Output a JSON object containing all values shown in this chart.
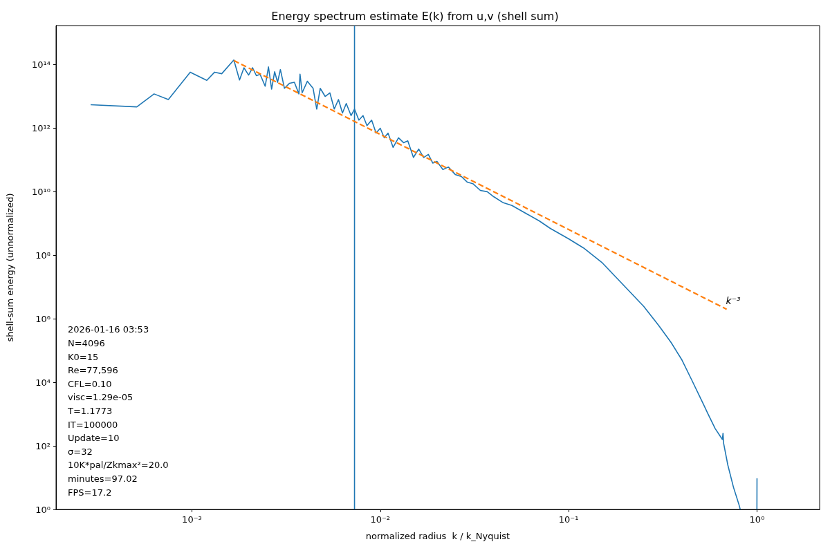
{
  "chart_data": {
    "type": "line",
    "title": "Energy spectrum estimate E(k) from u,v (shell sum)",
    "xlabel": "normalized radius  k / k_Nyquist",
    "ylabel": "shell-sum energy (unnormalized)",
    "log": "xy",
    "grid": false,
    "marker": "none",
    "xlim": [
      0.00019,
      2.15
    ],
    "ylim": [
      1,
      1700000000000000.0
    ],
    "xticks": [
      {
        "value": 0.001,
        "label": "10⁻³"
      },
      {
        "value": 0.01,
        "label": "10⁻²"
      },
      {
        "value": 0.1,
        "label": "10⁻¹"
      },
      {
        "value": 1,
        "label": "10⁰"
      }
    ],
    "yticks": [
      {
        "value": 1,
        "label": "10⁰"
      },
      {
        "value": 100,
        "label": "10²"
      },
      {
        "value": 10000,
        "label": "10⁴"
      },
      {
        "value": 1000000,
        "label": "10⁶"
      },
      {
        "value": 100000000,
        "label": "10⁸"
      },
      {
        "value": 10000000000,
        "label": "10¹⁰"
      },
      {
        "value": 1000000000000,
        "label": "10¹²"
      },
      {
        "value": 100000000000000,
        "label": "10¹⁴"
      }
    ],
    "ref_lines": [
      {
        "axis": "x",
        "value": 0.0073,
        "label": null,
        "color": "#1f77b4"
      }
    ],
    "series": [
      {
        "color": "#1f77b4",
        "line_style": "solid",
        "x": [
          0.00029,
          0.00051,
          0.00063,
          0.00075,
          0.00098,
          0.0012,
          0.00132,
          0.00144,
          0.00167,
          0.00179,
          0.00189,
          0.002,
          0.0021,
          0.0022,
          0.0023,
          0.00245,
          0.00255,
          0.00265,
          0.00275,
          0.00285,
          0.00295,
          0.0031,
          0.0033,
          0.0035,
          0.0037,
          0.00375,
          0.00385,
          0.0041,
          0.0044,
          0.0046,
          0.0048,
          0.0051,
          0.0054,
          0.0057,
          0.006,
          0.0063,
          0.0066,
          0.007,
          0.0073,
          0.0077,
          0.0081,
          0.0085,
          0.009,
          0.0095,
          0.01,
          0.0105,
          0.011,
          0.0117,
          0.0125,
          0.0133,
          0.014,
          0.015,
          0.016,
          0.017,
          0.018,
          0.019,
          0.02,
          0.0215,
          0.023,
          0.025,
          0.027,
          0.029,
          0.031,
          0.034,
          0.037,
          0.04,
          0.045,
          0.05,
          0.06,
          0.07,
          0.08,
          0.1,
          0.12,
          0.15,
          0.2,
          0.25,
          0.3,
          0.35,
          0.4,
          0.45,
          0.5,
          0.55,
          0.6,
          0.655,
          0.66,
          0.665,
          0.7,
          0.75,
          0.8,
          0.815,
          0.9,
          0.999,
          1.0
        ],
        "values": [
          5500000000000.0,
          4700000000000.0,
          12000000000000.0,
          8000000000000.0,
          58000000000000.0,
          32000000000000.0,
          58000000000000.0,
          52000000000000.0,
          140000000000000.0,
          33000000000000.0,
          80000000000000.0,
          47000000000000.0,
          80000000000000.0,
          45000000000000.0,
          50000000000000.0,
          21000000000000.0,
          85000000000000.0,
          17000000000000.0,
          60000000000000.0,
          28000000000000.0,
          70000000000000.0,
          18000000000000.0,
          26000000000000.0,
          28000000000000.0,
          12000000000000.0,
          50000000000000.0,
          13000000000000.0,
          30000000000000.0,
          18000000000000.0,
          4000000000000.0,
          18000000000000.0,
          10000000000000.0,
          13000000000000.0,
          4000000000000.0,
          8000000000000.0,
          3000000000000.0,
          6000000000000.0,
          2500000000000.0,
          4000000000000.0,
          1800000000000.0,
          2500000000000.0,
          1200000000000.0,
          1800000000000.0,
          700000000000.0,
          1000000000000.0,
          500000000000.0,
          700000000000.0,
          250000000000.0,
          500000000000.0,
          350000000000.0,
          400000000000.0,
          120000000000.0,
          220000000000.0,
          120000000000.0,
          150000000000.0,
          80000000000.0,
          90000000000.0,
          50000000000.0,
          60000000000.0,
          35000000000.0,
          30000000000.0,
          20000000000.0,
          18000000000.0,
          11000000000.0,
          10000000000.0,
          7000000000.0,
          4500000000.0,
          3700000000.0,
          2000000000.0,
          1200000000.0,
          700000000.0,
          330000000.0,
          170000000.0,
          60000000.0,
          10000000.0,
          2500000.0,
          630000,
          180000,
          50000,
          12000,
          3300,
          1000,
          350,
          160,
          250,
          120,
          25,
          5,
          1.5,
          1,
          null,
          1,
          9.5
        ]
      },
      {
        "color": "#ff7f0e",
        "line_style": "dashed",
        "x": [
          0.00167,
          0.69
        ],
        "values": [
          135000000000000.0,
          2000000.0
        ]
      }
    ],
    "annotations": [
      "k⁻³",
      "2026-01-16 03:53",
      "N=4096",
      "K0=15",
      "Re=77,596",
      "CFL=0.10",
      "visc=1.29e-05",
      "T=1.1773",
      "IT=100000",
      "Update=10",
      "σ=32",
      "10K*pal/Zkmax²=20.0",
      "minutes=97.02",
      "FPS=17.2"
    ]
  }
}
